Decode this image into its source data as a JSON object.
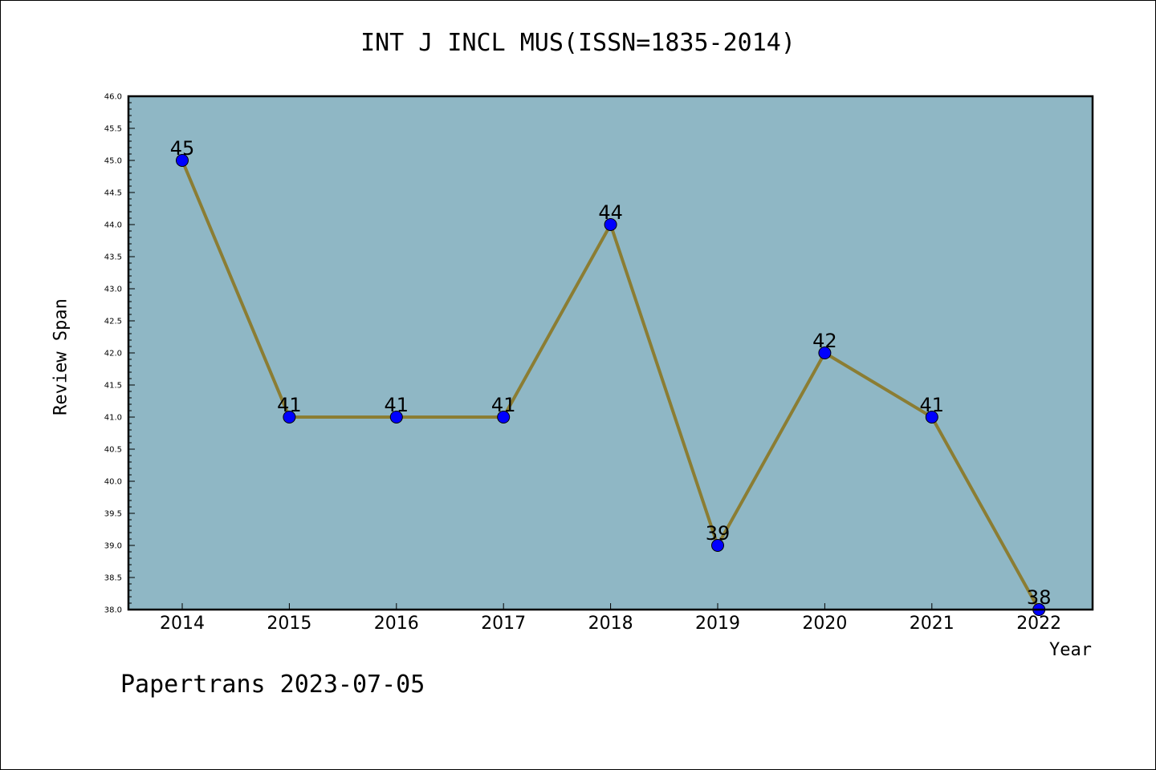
{
  "chart_data": {
    "type": "line",
    "title": "INT J INCL MUS(ISSN=1835-2014)",
    "xlabel": "Year",
    "ylabel": "Review Span",
    "categories": [
      "2014",
      "2015",
      "2016",
      "2017",
      "2018",
      "2019",
      "2020",
      "2021",
      "2022"
    ],
    "values": [
      45,
      41,
      41,
      41,
      44,
      39,
      42,
      41,
      38
    ],
    "ylim": [
      38.0,
      46.0
    ],
    "yticks": [
      "38.0",
      "38.5",
      "39.0",
      "39.5",
      "40.0",
      "40.5",
      "41.0",
      "41.5",
      "42.0",
      "42.5",
      "43.0",
      "43.5",
      "44.0",
      "44.5",
      "45.0",
      "45.5",
      "46.0"
    ],
    "data_labels": [
      "45",
      "41",
      "41",
      "41",
      "44",
      "39",
      "42",
      "41",
      "38"
    ],
    "grid": false,
    "colors": {
      "plot_background": "#8fb7c5",
      "line": "#8b7d33",
      "marker": "#0000ff"
    }
  },
  "footer": "Papertrans 2023-07-05"
}
